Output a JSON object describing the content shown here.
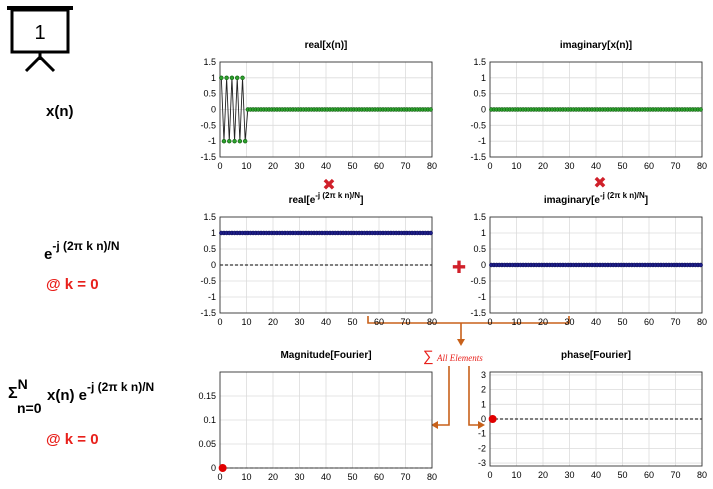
{
  "slide_number": "1",
  "row_labels": {
    "xn": "x(n)",
    "exp_base": "e",
    "exp_power": "-j (2π k n)/N",
    "k_label": "@ k = 0",
    "sum_sigma": "Σ",
    "sum_upper": "N",
    "sum_lower": "n=0",
    "sum_body": "x(n) e",
    "sum_power": "-j (2π k n)/N",
    "k_label_2": "@ k = 0"
  },
  "operators": {
    "multiply": "✖",
    "add": "✚",
    "sum_text": "All Elements",
    "sum_symbol": "∑"
  },
  "colors": {
    "green_marker": "#2ea02e",
    "navy_marker": "#1f1f8a",
    "red_marker": "#e00000",
    "red_text": "#e8201b",
    "arrow": "#c8611a",
    "operator_red": "#d0202a"
  },
  "chart_data": [
    {
      "id": "real_xn",
      "type": "line",
      "title": "real[x(n)]",
      "xlim": [
        0,
        80
      ],
      "ylim": [
        -1.5,
        1.5
      ],
      "xticks": [
        0,
        10,
        20,
        30,
        40,
        50,
        60,
        70,
        80
      ],
      "yticks": [
        1.5,
        1,
        0.5,
        0,
        -0.5,
        -1,
        -1.5
      ],
      "ytick_labels": [
        "1.5",
        "1",
        "0.5",
        "0",
        "-0.5",
        "-1",
        "-1.5"
      ],
      "marker": "green",
      "n_points": 80,
      "series": [
        {
          "values_rule": "(-1)^n for n<10 else 0"
        }
      ],
      "zero_dashed": false
    },
    {
      "id": "imag_xn",
      "type": "line",
      "title": "imaginary[x(n)]",
      "xlim": [
        0,
        80
      ],
      "ylim": [
        -1.5,
        1.5
      ],
      "xticks": [
        0,
        10,
        20,
        30,
        40,
        50,
        60,
        70,
        80
      ],
      "yticks": [
        1.5,
        1,
        0.5,
        0,
        -0.5,
        -1,
        -1.5
      ],
      "ytick_labels": [
        "1.5",
        "1",
        "0.5",
        "0",
        "-0.5",
        "-1",
        "-1.5"
      ],
      "marker": "green",
      "n_points": 80,
      "series": [
        {
          "values_rule": "0"
        }
      ],
      "zero_dashed": false
    },
    {
      "id": "real_exp",
      "type": "line",
      "title_main": "real[e",
      "title_sup": "-j (2π k n)/N",
      "title_end": "]",
      "xlim": [
        0,
        80
      ],
      "ylim": [
        -1.5,
        1.5
      ],
      "xticks": [
        0,
        10,
        20,
        30,
        40,
        50,
        60,
        70,
        80
      ],
      "yticks": [
        1.5,
        1,
        0.5,
        0,
        -0.5,
        -1,
        -1.5
      ],
      "ytick_labels": [
        "1.5",
        "1",
        "0.5",
        "0",
        "-0.5",
        "-1",
        "-1.5"
      ],
      "marker": "navy",
      "n_points": 80,
      "series": [
        {
          "values_rule": "1"
        }
      ],
      "zero_dashed": true
    },
    {
      "id": "imag_exp",
      "type": "line",
      "title_main": "imaginary[e",
      "title_sup": "-j (2π k n)/N",
      "title_end": "]",
      "xlim": [
        0,
        80
      ],
      "ylim": [
        -1.5,
        1.5
      ],
      "xticks": [
        0,
        10,
        20,
        30,
        40,
        50,
        60,
        70,
        80
      ],
      "yticks": [
        1.5,
        1,
        0.5,
        0,
        -0.5,
        -1,
        -1.5
      ],
      "ytick_labels": [
        "1.5",
        "1",
        "0.5",
        "0",
        "-0.5",
        "-1",
        "-1.5"
      ],
      "marker": "navy",
      "n_points": 80,
      "series": [
        {
          "values_rule": "0"
        }
      ],
      "zero_dashed": true
    },
    {
      "id": "magnitude",
      "type": "scatter",
      "title": "Magnitude[Fourier]",
      "xlim": [
        0,
        80
      ],
      "ylim": [
        0,
        0.2
      ],
      "xticks": [
        0,
        10,
        20,
        30,
        40,
        50,
        60,
        70,
        80
      ],
      "yticks": [
        0.15,
        0.1,
        0.05,
        0
      ],
      "ytick_labels": [
        "0.15",
        "0.1",
        "0.05",
        "0"
      ],
      "points": [
        {
          "x": 1,
          "y": 0
        }
      ],
      "marker": "red",
      "zero_dashed": true
    },
    {
      "id": "phase",
      "type": "scatter",
      "title": "phase[Fourier]",
      "xlim": [
        0,
        80
      ],
      "ylim": [
        -3.2,
        3.2
      ],
      "xticks": [
        0,
        10,
        20,
        30,
        40,
        50,
        60,
        70,
        80
      ],
      "yticks": [
        3,
        2,
        1,
        0,
        -1,
        -2,
        -3
      ],
      "ytick_labels": [
        "3",
        "2",
        "1",
        "0",
        "-1",
        "-2",
        "-3"
      ],
      "points": [
        {
          "x": 1,
          "y": 0
        }
      ],
      "marker": "red",
      "zero_dashed": true
    }
  ]
}
